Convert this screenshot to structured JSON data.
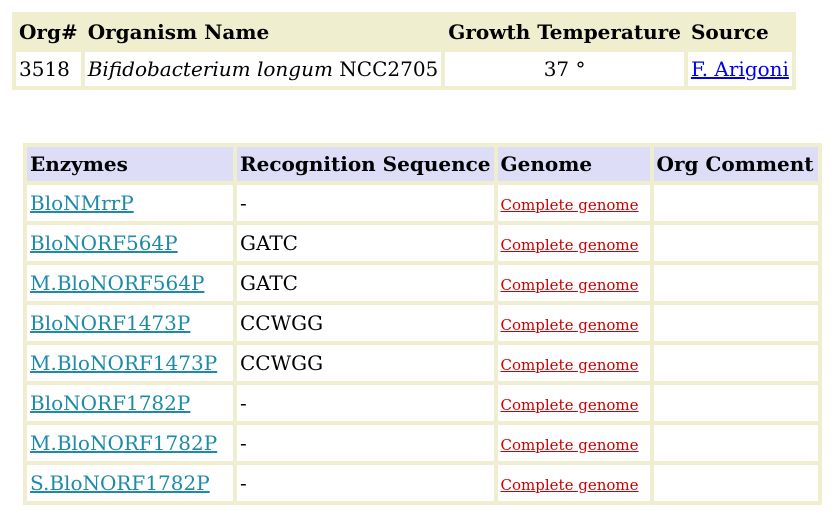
{
  "organism_table": {
    "headers": {
      "org_num": "Org#",
      "name": "Organism Name",
      "growth_temp": "Growth Temperature",
      "source": "Source"
    },
    "row": {
      "org_num": "3518",
      "name_italic": "Bifidobacterium longum",
      "name_strain": " NCC2705",
      "growth_temp": "37 °",
      "source": "F. Arigoni"
    }
  },
  "enzyme_table": {
    "headers": {
      "enzymes": "Enzymes",
      "recognition": "Recognition Sequence",
      "genome": "Genome",
      "comment": "Org Comment"
    },
    "rows": [
      {
        "enzyme": "BloNMrrP",
        "sequence": "-",
        "genome": "Complete genome",
        "comment": ""
      },
      {
        "enzyme": "BloNORF564P",
        "sequence": "GATC",
        "genome": "Complete genome",
        "comment": ""
      },
      {
        "enzyme": "M.BloNORF564P",
        "sequence": "GATC",
        "genome": "Complete genome",
        "comment": ""
      },
      {
        "enzyme": "BloNORF1473P",
        "sequence": "CCWGG",
        "genome": "Complete genome",
        "comment": ""
      },
      {
        "enzyme": "M.BloNORF1473P",
        "sequence": "CCWGG",
        "genome": "Complete genome",
        "comment": ""
      },
      {
        "enzyme": "BloNORF1782P",
        "sequence": "-",
        "genome": "Complete genome",
        "comment": ""
      },
      {
        "enzyme": "M.BloNORF1782P",
        "sequence": "-",
        "genome": "Complete genome",
        "comment": ""
      },
      {
        "enzyme": "S.BloNORF1782P",
        "sequence": "-",
        "genome": "Complete genome",
        "comment": ""
      }
    ]
  },
  "colors": {
    "header_bg_org": "#efefcf",
    "header_bg_enzymes": "#ddddf8",
    "enzyme_link": "#1c8aa8",
    "genome_link": "#cc0000",
    "source_link": "#0000ee"
  }
}
